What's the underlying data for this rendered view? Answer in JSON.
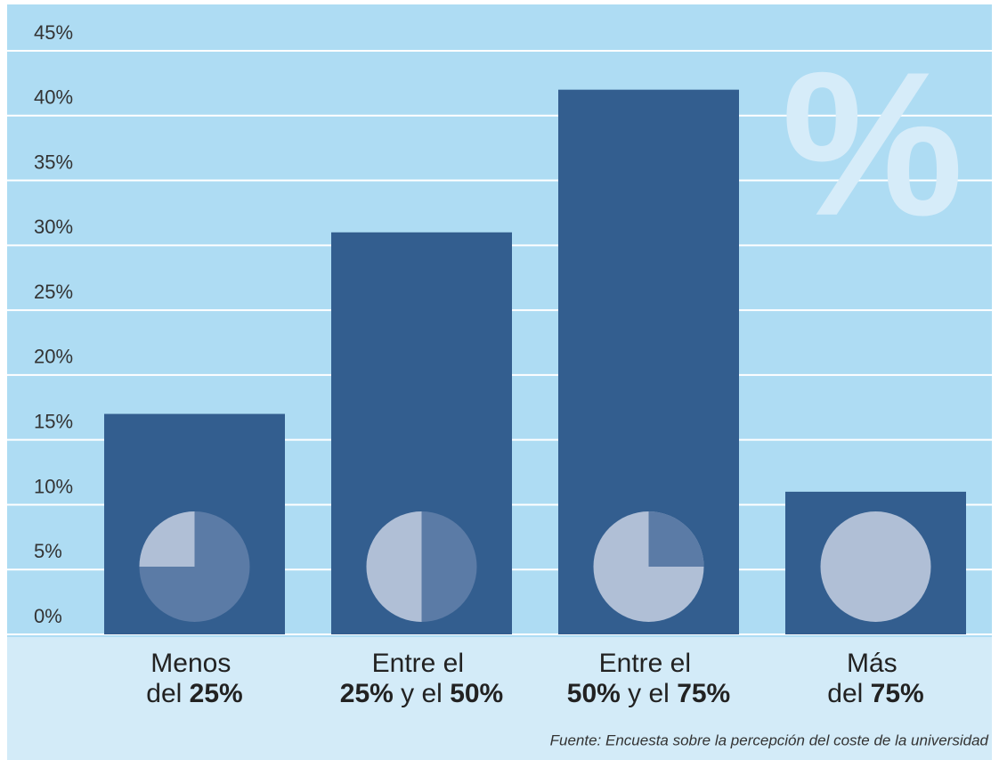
{
  "chart_data": {
    "type": "bar",
    "watermark": "%",
    "source": "Fuente: Encuesta sobre la percepción del coste de la universidad",
    "categories": [
      "Menos del 25%",
      "Entre el 25% y el 50%",
      "Entre el 50% y el 75%",
      "Más del 75%"
    ],
    "values": [
      17,
      31,
      42,
      11
    ],
    "color": "#335e8f",
    "ylim": [
      0,
      45
    ],
    "yticks": [
      {
        "value": 0,
        "label": "0%"
      },
      {
        "value": 5,
        "label": "5%"
      },
      {
        "value": 10,
        "label": "10%"
      },
      {
        "value": 15,
        "label": "15%"
      },
      {
        "value": 20,
        "label": "20%"
      },
      {
        "value": 25,
        "label": "25%"
      },
      {
        "value": 30,
        "label": "30%"
      },
      {
        "value": 35,
        "label": "35%"
      },
      {
        "value": 40,
        "label": "40%"
      },
      {
        "value": 45,
        "label": "45%"
      }
    ],
    "grid": true
  }
}
